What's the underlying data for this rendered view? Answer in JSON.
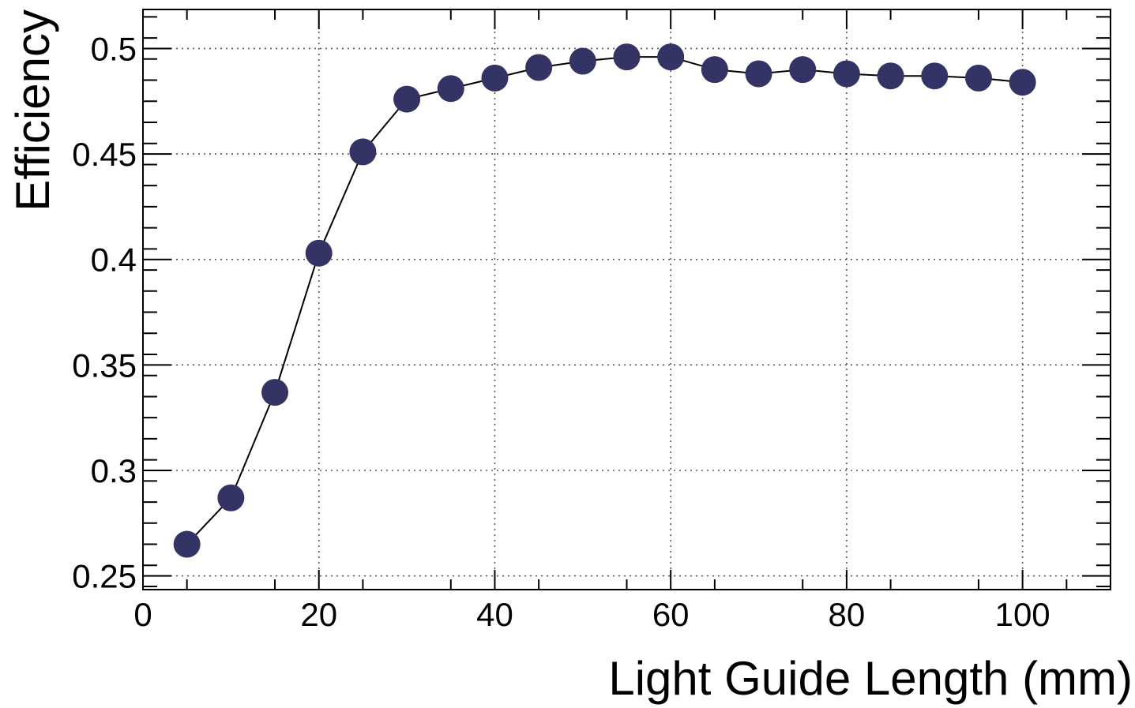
{
  "chart_data": {
    "type": "line",
    "title": "",
    "xlabel": "Light Guide Length (mm)",
    "ylabel": "Efficiency",
    "xlim": [
      0,
      110
    ],
    "ylim": [
      0.2435,
      0.5185
    ],
    "x_ticks": [
      "0",
      "20",
      "40",
      "60",
      "80",
      "100"
    ],
    "y_ticks": [
      "0.25",
      "0.3",
      "0.35",
      "0.4",
      "0.45",
      "0.5"
    ],
    "grid": true,
    "marker_color": "#333366",
    "line_color": "#000000",
    "series": [
      {
        "x": [
          5,
          10,
          15,
          20,
          25,
          30,
          35,
          40,
          45,
          50,
          55,
          60,
          65,
          70,
          75,
          80,
          85,
          90,
          95,
          100
        ],
        "y": [
          0.265,
          0.287,
          0.337,
          0.403,
          0.451,
          0.476,
          0.481,
          0.486,
          0.491,
          0.494,
          0.496,
          0.496,
          0.49,
          0.488,
          0.49,
          0.488,
          0.487,
          0.487,
          0.486,
          0.484
        ]
      }
    ]
  }
}
